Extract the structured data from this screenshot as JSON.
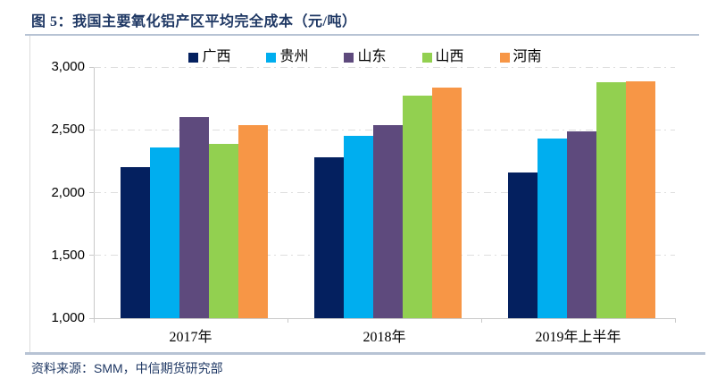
{
  "header": {
    "title": "图 5：我国主要氧化铝产区平均完全成本（元/吨）"
  },
  "source": {
    "label": "资料来源：SMM，中信期货研究部"
  },
  "colors": {
    "title_text": "#1F3864",
    "rule": "#B7C3D4",
    "axis": "#C9C9C9",
    "grid": "#DEDEDE"
  },
  "chart_data": {
    "type": "bar",
    "title": "图 5：我国主要氧化铝产区平均完全成本（元/吨）",
    "categories": [
      "2017年",
      "2018年",
      "2019年上半年"
    ],
    "series": [
      {
        "name": "广西",
        "color": "#04205F",
        "values": [
          2200,
          2280,
          2160
        ]
      },
      {
        "name": "贵州",
        "color": "#00AEEF",
        "values": [
          2360,
          2450,
          2430
        ]
      },
      {
        "name": "山东",
        "color": "#5E4A7D",
        "values": [
          2600,
          2540,
          2490
        ]
      },
      {
        "name": "山西",
        "color": "#92D050",
        "values": [
          2390,
          2770,
          2880
        ]
      },
      {
        "name": "河南",
        "color": "#F79646",
        "values": [
          2540,
          2840,
          2890
        ]
      }
    ],
    "ylim": [
      1000,
      3000
    ],
    "yticks": [
      1000,
      1500,
      2000,
      2500,
      3000
    ],
    "ytick_labels": [
      "1,000",
      "1,500",
      "2,000",
      "2,500",
      "3,000"
    ],
    "xlabel": "",
    "ylabel": "",
    "grid": "horizontal dash-dot",
    "legend_position": "top-center"
  }
}
